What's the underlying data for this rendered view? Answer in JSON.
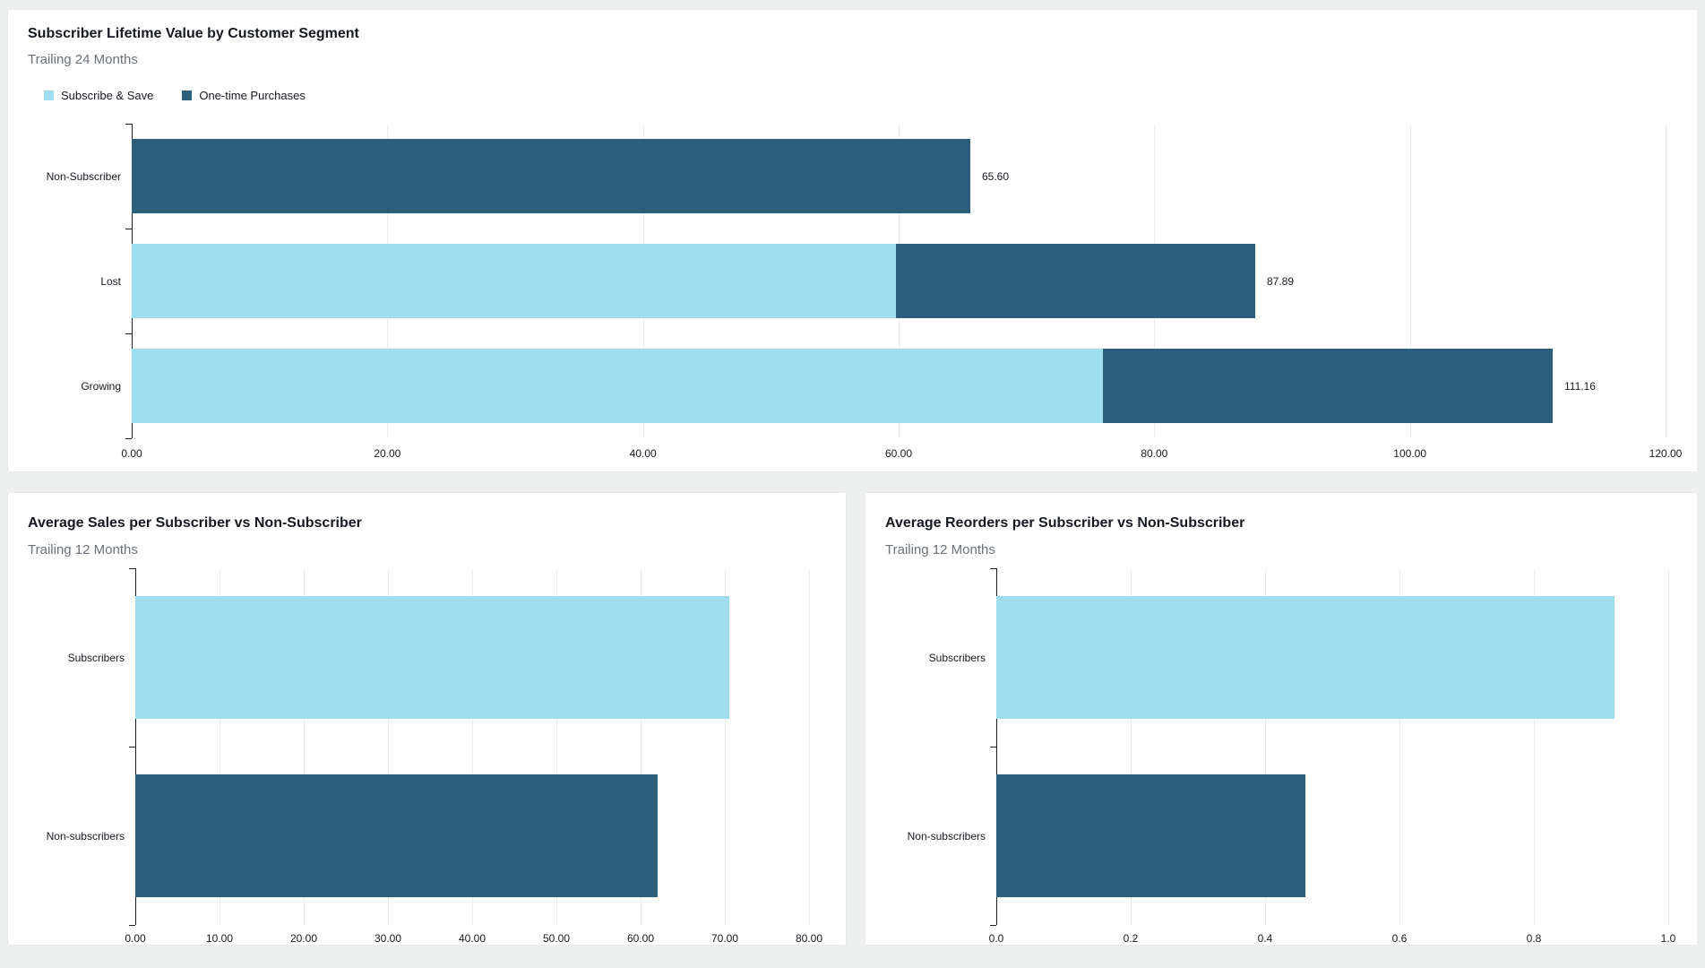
{
  "theme": {
    "series_light_blue": "#9EDEEE",
    "series_dark_teal": "#2B5F7B",
    "page_background": "#eef0f0",
    "gridline_color": "#ededed",
    "axis_color": "#1a1f24",
    "title_color": "#16191f",
    "subtitle_color": "#6b7178"
  },
  "chart_data": [
    {
      "type": "bar",
      "orientation": "horizontal",
      "stacked": true,
      "title": "Subscriber Lifetime Value by Customer Segment",
      "subtitle": "Trailing 24 Months",
      "legend_position": "top-left",
      "grid": true,
      "categories": [
        "Non-Subscriber",
        "Lost",
        "Growing"
      ],
      "series": [
        {
          "name": "Subscribe & Save",
          "color": "#9EDEEE",
          "values": [
            0,
            59.8,
            76.0
          ]
        },
        {
          "name": "One-time Purchases",
          "color": "#2B5F7B",
          "values": [
            65.6,
            28.09,
            35.16
          ]
        }
      ],
      "totals": [
        65.6,
        87.89,
        111.16
      ],
      "value_labels": [
        "65.60",
        "87.89",
        "111.16"
      ],
      "xlim": [
        0,
        120
      ],
      "x_ticks": {
        "values": [
          0,
          20,
          40,
          60,
          80,
          100,
          120
        ],
        "labels": [
          "0.00",
          "20.00",
          "40.00",
          "60.00",
          "80.00",
          "100.00",
          "120.00"
        ]
      }
    },
    {
      "type": "bar",
      "orientation": "horizontal",
      "stacked": false,
      "title": "Average Sales per Subscriber vs Non-Subscriber",
      "subtitle": "Trailing 12 Months",
      "grid": true,
      "categories": [
        "Subscribers",
        "Non-subscribers"
      ],
      "values": [
        70.5,
        62.0
      ],
      "bar_colors": [
        "#9EDEEE",
        "#2B5F7B"
      ],
      "xlim": [
        0,
        80
      ],
      "x_ticks": {
        "values": [
          0,
          10,
          20,
          30,
          40,
          50,
          60,
          70,
          80
        ],
        "labels": [
          "0.00",
          "10.00",
          "20.00",
          "30.00",
          "40.00",
          "50.00",
          "60.00",
          "70.00",
          "80.00"
        ]
      }
    },
    {
      "type": "bar",
      "orientation": "horizontal",
      "stacked": false,
      "title": "Average Reorders per Subscriber vs Non-Subscriber",
      "subtitle": "Trailing 12 Months",
      "grid": true,
      "categories": [
        "Subscribers",
        "Non-subscribers"
      ],
      "values": [
        0.92,
        0.46
      ],
      "bar_colors": [
        "#9EDEEE",
        "#2B5F7B"
      ],
      "xlim": [
        0,
        1.0
      ],
      "x_ticks": {
        "values": [
          0,
          0.2,
          0.4,
          0.6,
          0.8,
          1.0
        ],
        "labels": [
          "0.0",
          "0.2",
          "0.4",
          "0.6",
          "0.8",
          "1.0"
        ]
      }
    }
  ]
}
